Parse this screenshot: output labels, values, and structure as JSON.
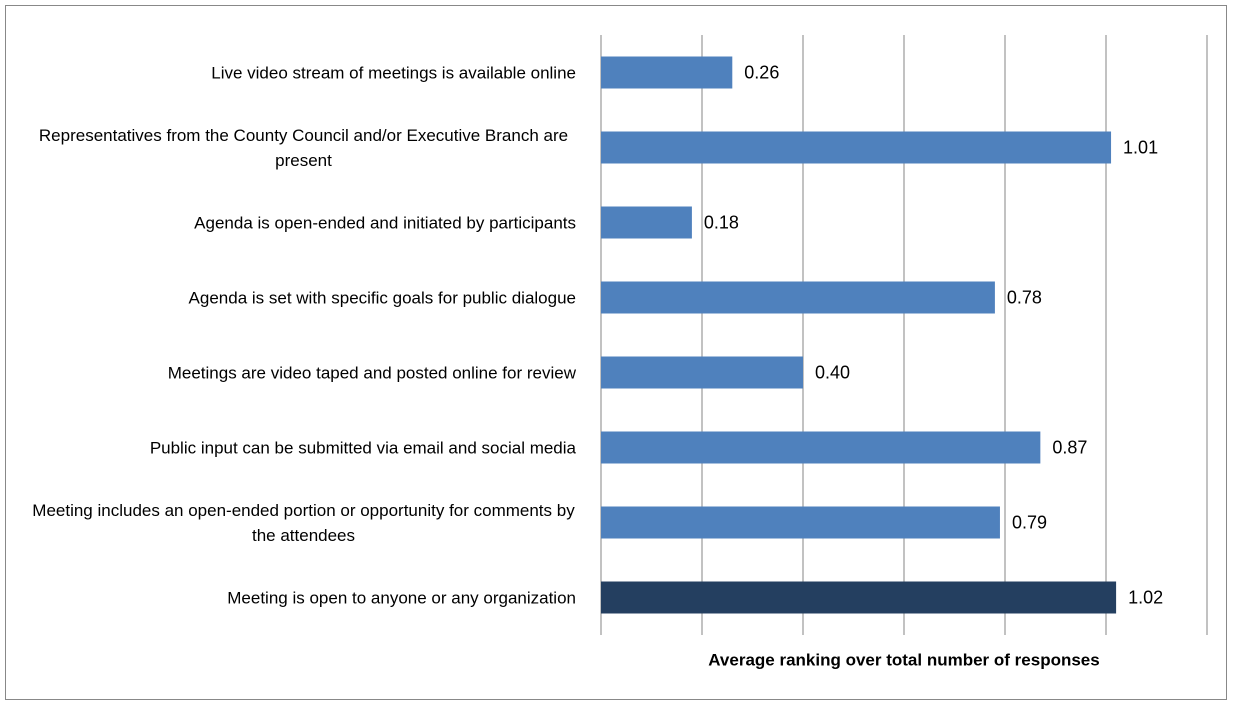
{
  "chart_data": {
    "type": "barh",
    "categories": [
      "Live video stream of meetings is available online",
      "Representatives from the County Council and/or Executive Branch are present",
      "Agenda is open-ended and initiated by participants",
      "Agenda is set with specific goals for public dialogue",
      "Meetings are video taped and posted online for review",
      "Public input can be submitted via email and social media",
      "Meeting includes an open-ended portion or opportunity for comments by the attendees",
      "Meeting is open to anyone or any organization"
    ],
    "values": [
      0.26,
      1.01,
      0.18,
      0.78,
      0.4,
      0.87,
      0.79,
      1.02
    ],
    "value_labels": [
      "0.26",
      "1.01",
      "0.18",
      "0.78",
      "0.40",
      "0.87",
      "0.79",
      "1.02"
    ],
    "colors": [
      "#4f81bd",
      "#4f81bd",
      "#4f81bd",
      "#4f81bd",
      "#4f81bd",
      "#4f81bd",
      "#4f81bd",
      "#243f60"
    ],
    "xlabel": "Average ranking over total number of responses",
    "xlim": [
      0,
      1.2
    ],
    "xticks": [
      0,
      0.2,
      0.4,
      0.6,
      0.8,
      1,
      1.2
    ],
    "grid": true
  }
}
